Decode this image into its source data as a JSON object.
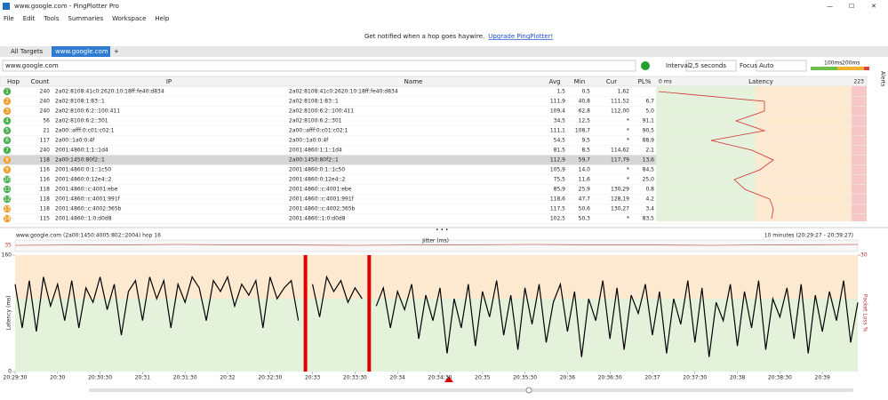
{
  "window": {
    "title": "www.google.com - PingPlotter Pro"
  },
  "menu": [
    "File",
    "Edit",
    "Tools",
    "Summaries",
    "Workspace",
    "Help"
  ],
  "banner": {
    "text": "Get notified when a hop goes haywire.",
    "link": "Upgrade PingPlotter!"
  },
  "tabs": [
    "All Targets",
    "www.google.com"
  ],
  "toolbar": {
    "target": "www.google.com",
    "interval_label": "Interval",
    "interval": "2,5 seconds",
    "focus_label": "Focus",
    "focus": "Auto",
    "scale": [
      "100ms",
      "200ms"
    ],
    "alerts": "Alerts"
  },
  "table": {
    "columns": [
      "Hop",
      "Count",
      "IP",
      "Name",
      "Avg",
      "Min",
      "Cur",
      "PL%",
      "Latency"
    ],
    "latency_scale": [
      "0 ms",
      "223"
    ],
    "selected_hop": 8,
    "hop_colors": [
      "#4caf50",
      "#f0a030",
      "#f0a030",
      "#4caf50",
      "#4caf50",
      "#4caf50",
      "#4caf50",
      "#f0a030",
      "#f0a030",
      "#4caf50",
      "#4caf50",
      "#4caf50",
      "#f0a030",
      "#f0a030"
    ],
    "rows": [
      [
        1,
        240,
        "2a02:8108:41c0:2620:10:18ff:fe40:d834",
        "2a02:8108:41c0:2620:10:18ff:fe40:d834",
        "1,5",
        "0,5",
        "1,62",
        null
      ],
      [
        2,
        240,
        "2a02:8108:1:83::1",
        "2a02:8108:1:83::1",
        "111,9",
        "40,8",
        "111,52",
        "6,7"
      ],
      [
        3,
        240,
        "2a02:8100:6:2::100:411",
        "2a02:8100:6:2::100:411",
        "109,4",
        "62,8",
        "112,00",
        "5,0"
      ],
      [
        4,
        56,
        "2a02:8100:6:2::301",
        "2a02:8100:6:2::301",
        "34,5",
        "12,5",
        "*",
        "91,1"
      ],
      [
        5,
        21,
        "2a00::afff:0:c01:c02:1",
        "2a00::afff:0:c01:c02:1",
        "111,1",
        "108,7",
        "*",
        "90,5"
      ],
      [
        6,
        117,
        "2a00::1a0:0:4f",
        "2a00::1a0:0:4f",
        "54,5",
        "9,5",
        "*",
        "88,9"
      ],
      [
        7,
        240,
        "2001:4860:1:1::1d4",
        "2001:4860:1:1::1d4",
        "81,5",
        "8,5",
        "114,62",
        "2,1"
      ],
      [
        8,
        118,
        "2a00:1450:80f2::1",
        "2a00:1450:80f2::1",
        "112,9",
        "59,7",
        "117,79",
        "13,6"
      ],
      [
        9,
        116,
        "2001:4860:0:1::1c50",
        "2001:4860:0:1::1c50",
        "105,9",
        "14,0",
        "*",
        "84,5"
      ],
      [
        10,
        116,
        "2001:4860:0:12e4::2",
        "2001:4860:0:12e4::2",
        "75,5",
        "11,6",
        "*",
        "25,0"
      ],
      [
        11,
        118,
        "2001:4860::c:4001:ebe",
        "2001:4860::c:4001:ebe",
        "85,9",
        "25,9",
        "130,29",
        "0,8"
      ],
      [
        12,
        118,
        "2001:4860::c:4001:991f",
        "2001:4860::c:4001:991f",
        "118,6",
        "47,7",
        "128,19",
        "4,2"
      ],
      [
        13,
        118,
        "2001:4860::c:4002:365b",
        "2001:4860::c:4002:365b",
        "117,5",
        "50,6",
        "130,27",
        "3,4"
      ],
      [
        14,
        115,
        "2001:4860::1:0:d0d8",
        "2001:4860::1:0:d0d8",
        "102,5",
        "50,3",
        "*",
        "83,5"
      ]
    ]
  },
  "chart_data": {
    "type": "line",
    "title": "www.google.com (2a00:1450:4005:802::2004) hop 16",
    "subtitle": "10 minutes (20:29:27 - 20:39:27)",
    "jitter_label": "Jitter (ms)",
    "jitter_yticks": [
      35
    ],
    "y_label": "Latency (ms)",
    "y2_label": "Packet Loss %",
    "ylim": [
      0,
      160
    ],
    "yticks": [
      0,
      160
    ],
    "y2lim": [
      0,
      30
    ],
    "y2ticks": [
      30
    ],
    "color": "#000000",
    "loss_color": "#e00000",
    "categories": [
      "20:29:30",
      null,
      null,
      null,
      null,
      null,
      "20:30",
      null,
      null,
      null,
      null,
      null,
      "20:30:30",
      null,
      null,
      null,
      null,
      null,
      "20:31",
      null,
      null,
      null,
      null,
      null,
      "20:31:30",
      null,
      null,
      null,
      null,
      null,
      "20:32",
      null,
      null,
      null,
      null,
      null,
      "20:32:30",
      null,
      null,
      null,
      null,
      null,
      "20:33",
      null,
      null,
      null,
      null,
      null,
      "20:33:30",
      null,
      null,
      null,
      null,
      null,
      "20:34",
      null,
      null,
      null,
      null,
      null,
      "20:34:30",
      null,
      null,
      null,
      null,
      null,
      "20:35",
      null,
      null,
      null,
      null,
      null,
      "20:35:30",
      null,
      null,
      null,
      null,
      null,
      "20:36",
      null,
      null,
      null,
      null,
      null,
      "20:36:30",
      null,
      null,
      null,
      null,
      null,
      "20:37",
      null,
      null,
      null,
      null,
      null,
      "20:37:30",
      null,
      null,
      null,
      null,
      null,
      "20:38",
      null,
      null,
      null,
      null,
      null,
      "20:38:30",
      null,
      null,
      null,
      null,
      null,
      "20:39",
      null,
      null,
      null,
      null,
      null
    ],
    "values": [
      120,
      60,
      125,
      55,
      130,
      90,
      120,
      70,
      125,
      60,
      115,
      95,
      130,
      85,
      120,
      50,
      110,
      125,
      70,
      130,
      100,
      125,
      60,
      120,
      95,
      130,
      115,
      70,
      125,
      110,
      130,
      90,
      120,
      105,
      125,
      60,
      130,
      100,
      115,
      125,
      70,
      null,
      120,
      75,
      130,
      110,
      125,
      95,
      115,
      100,
      null,
      90,
      115,
      60,
      110,
      85,
      120,
      45,
      105,
      70,
      115,
      25,
      100,
      60,
      120,
      35,
      110,
      75,
      125,
      50,
      105,
      30,
      115,
      65,
      120,
      40,
      95,
      120,
      55,
      110,
      20,
      100,
      70,
      125,
      45,
      115,
      30,
      105,
      80,
      120,
      50,
      110,
      25,
      100,
      65,
      125,
      40,
      115,
      20,
      95,
      70,
      120,
      35,
      110,
      60,
      125,
      30,
      100,
      75,
      115,
      45,
      120,
      25,
      105,
      55,
      110,
      70,
      125,
      40,
      95
    ]
  }
}
